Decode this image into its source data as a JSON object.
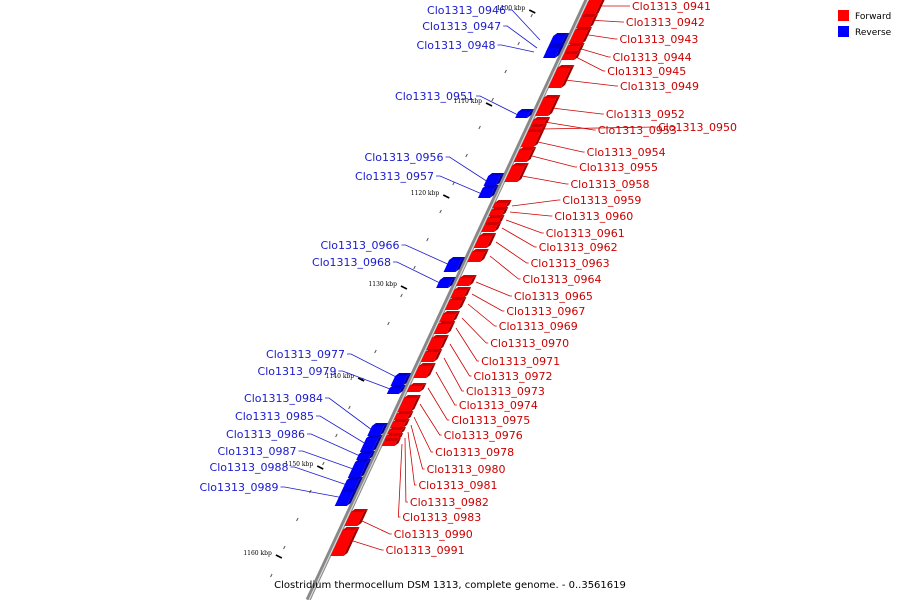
{
  "caption": "Clostridium thermocellum DSM 1313, complete genome. - 0..3561619",
  "legend": [
    {
      "label": "Forward",
      "color": "#ff0000"
    },
    {
      "label": "Reverse",
      "color": "#0000ff"
    }
  ],
  "colors": {
    "forward": "#ff0000",
    "forward_label": "#cc0000",
    "reverse": "#0000ff",
    "reverse_label": "#1a1acc",
    "backbone": "#888888"
  },
  "kbp_ticks": [
    "1100 kbp",
    "1110 kbp",
    "1120 kbp",
    "1130 kbp",
    "1140 kbp",
    "1150 kbp",
    "1160 kbp"
  ],
  "forward_genes": [
    "Clo1313_0941",
    "Clo1313_0942",
    "Clo1313_0943",
    "Clo1313_0944",
    "Clo1313_0945",
    "Clo1313_0949",
    "Clo1313_0952",
    "Clo1313_0953",
    "Clo1313_0950",
    "Clo1313_0954",
    "Clo1313_0955",
    "Clo1313_0958",
    "Clo1313_0959",
    "Clo1313_0960",
    "Clo1313_0961",
    "Clo1313_0962",
    "Clo1313_0963",
    "Clo1313_0964",
    "Clo1313_0965",
    "Clo1313_0967",
    "Clo1313_0969",
    "Clo1313_0970",
    "Clo1313_0971",
    "Clo1313_0972",
    "Clo1313_0973",
    "Clo1313_0974",
    "Clo1313_0975",
    "Clo1313_0976",
    "Clo1313_0978",
    "Clo1313_0980",
    "Clo1313_0981",
    "Clo1313_0982",
    "Clo1313_0983",
    "Clo1313_0990",
    "Clo1313_0991"
  ],
  "reverse_genes": [
    "Clo1313_0946",
    "Clo1313_0947",
    "Clo1313_0948",
    "Clo1313_0951",
    "Clo1313_0956",
    "Clo1313_0957",
    "Clo1313_0966",
    "Clo1313_0968",
    "Clo1313_0977",
    "Clo1313_0979",
    "Clo1313_0984",
    "Clo1313_0985",
    "Clo1313_0986",
    "Clo1313_0987",
    "Clo1313_0988",
    "Clo1313_0989"
  ]
}
